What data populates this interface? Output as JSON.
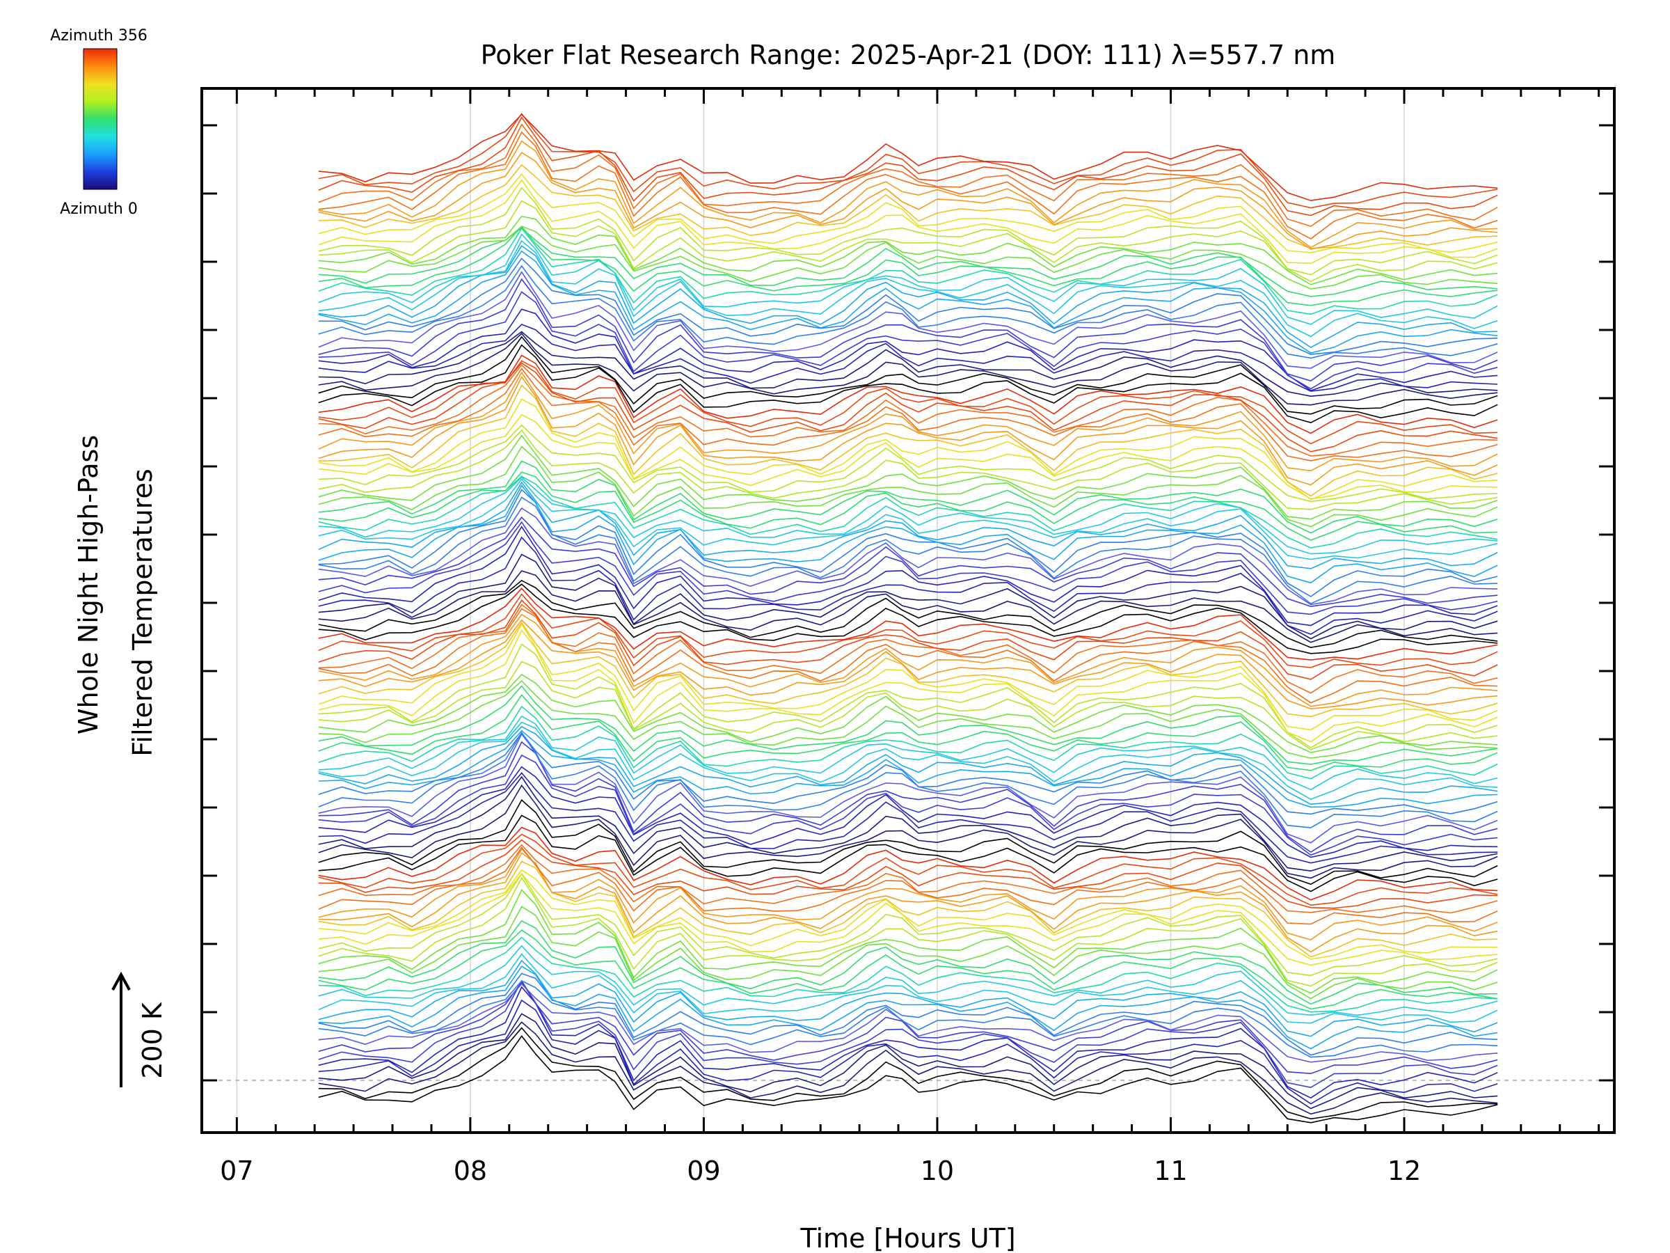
{
  "chart_data": {
    "type": "line",
    "title": "Poker Flat Research Range: 2025-Apr-21 (DOY: 111) λ=557.7 nm",
    "xlabel": "Time [Hours UT]",
    "ylabel_line1": "Whole Night High-Pass",
    "ylabel_line2": "Filtered Temperatures",
    "scale_label": "200 K",
    "xlim": [
      6.85,
      12.9
    ],
    "x_ticks": [
      7,
      8,
      9,
      10,
      11,
      12
    ],
    "x_tick_labels": [
      "07",
      "08",
      "09",
      "10",
      "11",
      "12"
    ],
    "colorbar": {
      "top_label": "Azimuth 356",
      "bottom_label": "Azimuth 0",
      "colors": [
        "#1a0a78",
        "#1f3fe0",
        "#1aa0ff",
        "#20e0e0",
        "#30e070",
        "#b0f020",
        "#f0e020",
        "#ff8a10",
        "#ee2a08"
      ]
    },
    "series_count": 128,
    "line_palette": [
      "#000000",
      "#1a1a7a",
      "#2424b4",
      "#3c3cd8",
      "#5a5ae8",
      "#2e7fe8",
      "#1aa8ee",
      "#22c8e0",
      "#20d8b0",
      "#30dc70",
      "#70e03c",
      "#b6e426",
      "#e8e020",
      "#f0c020",
      "#f49a18",
      "#f07018",
      "#e84a10",
      "#e02a0a"
    ],
    "mean_profile": {
      "x": [
        7.35,
        7.45,
        7.55,
        7.65,
        7.75,
        7.85,
        7.95,
        8.05,
        8.15,
        8.22,
        8.28,
        8.35,
        8.45,
        8.55,
        8.62,
        8.7,
        8.8,
        8.9,
        9.0,
        9.1,
        9.2,
        9.3,
        9.4,
        9.5,
        9.6,
        9.7,
        9.78,
        9.85,
        9.92,
        10.0,
        10.1,
        10.2,
        10.3,
        10.4,
        10.5,
        10.6,
        10.7,
        10.8,
        10.9,
        11.0,
        11.1,
        11.2,
        11.3,
        11.4,
        11.5,
        11.6,
        11.7,
        11.8,
        11.9,
        12.0,
        12.1,
        12.2,
        12.3,
        12.4
      ],
      "y": [
        0,
        5,
        0,
        10,
        -5,
        20,
        45,
        65,
        85,
        140,
        110,
        60,
        55,
        70,
        55,
        -20,
        20,
        40,
        -5,
        -8,
        -15,
        -10,
        -5,
        -10,
        10,
        40,
        60,
        45,
        25,
        30,
        30,
        35,
        40,
        20,
        -10,
        20,
        30,
        40,
        45,
        40,
        50,
        55,
        60,
        20,
        -40,
        -60,
        -40,
        -30,
        -30,
        -30,
        -28,
        -30,
        -35,
        -25
      ]
    }
  }
}
